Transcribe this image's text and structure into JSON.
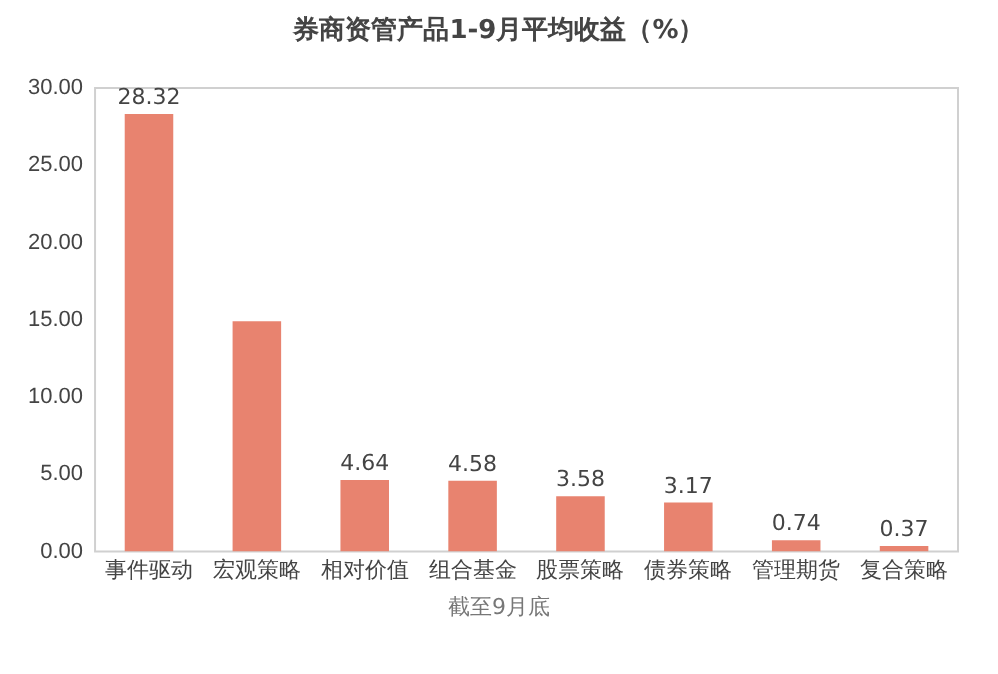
{
  "chart_data": {
    "type": "bar",
    "title": "券商资管产品1-9月平均收益（%）",
    "categories": [
      "事件驱动",
      "宏观策略",
      "相对价值",
      "组合基金",
      "股票策略",
      "债券策略",
      "管理期货",
      "复合策略"
    ],
    "values": [
      28.32,
      14.9,
      4.64,
      4.58,
      3.58,
      3.17,
      0.74,
      0.37
    ],
    "value_labels": [
      "28.32",
      null,
      "4.64",
      "4.58",
      "3.58",
      "3.17",
      "0.74",
      "0.37"
    ],
    "color": "#e8836f",
    "ylim": [
      0,
      30
    ],
    "yticks": [
      {
        "value": 0,
        "label": "0.00"
      },
      {
        "value": 5,
        "label": "5.00"
      },
      {
        "value": 10,
        "label": "10.00"
      },
      {
        "value": 15,
        "label": "15.00"
      },
      {
        "value": 20,
        "label": "20.00"
      },
      {
        "value": 25,
        "label": "25.00"
      },
      {
        "value": 30,
        "label": "30.00"
      }
    ],
    "grid": false,
    "legend": false,
    "annotations": [
      "截至9月底"
    ]
  }
}
